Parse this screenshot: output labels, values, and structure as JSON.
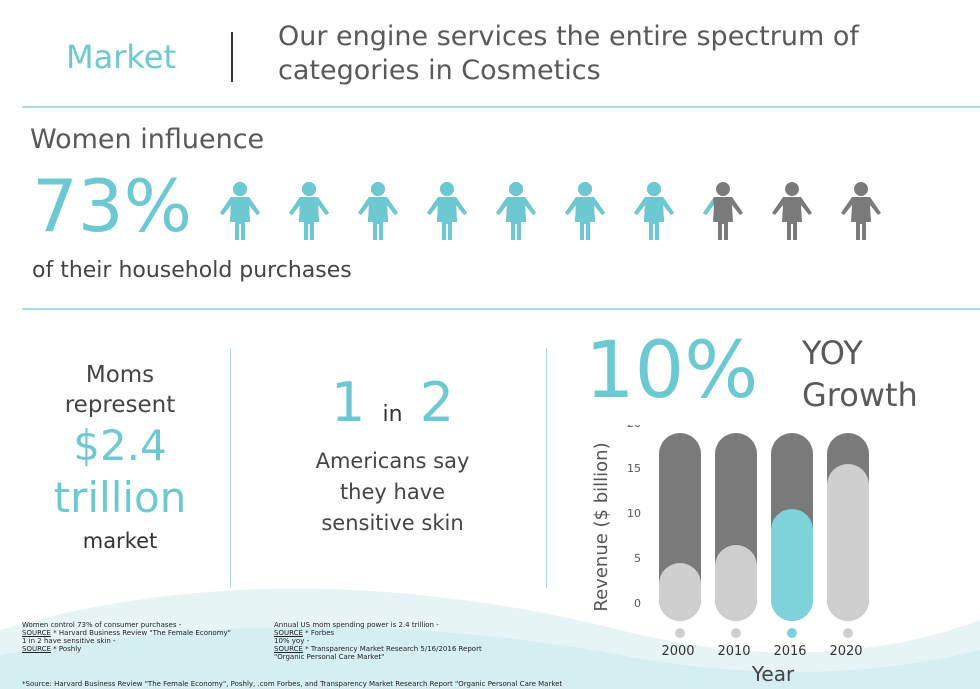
{
  "header": {
    "section": "Market",
    "tagline_line1": "Our engine services the entire spectrum of",
    "tagline_line2": "categories in Cosmetics"
  },
  "influence": {
    "heading": "Women influence",
    "percent": "73%",
    "caption": "of their household purchases",
    "figures_total": 10,
    "figures_filled": 7.3
  },
  "moms": {
    "line1": "Moms",
    "line2": "represent",
    "amount": "$2.4",
    "unit": "trillion",
    "line5": "market"
  },
  "americans": {
    "num1": "1",
    "in": "in",
    "num2": "2",
    "line1": "Americans say",
    "line2": "they have",
    "line3": "sensitive skin"
  },
  "growth": {
    "percent": "10%",
    "label1": "YOY",
    "label2": "Growth"
  },
  "sources": {
    "left1": "Women control 73% of consumer purchases -",
    "left2_key": "SOURCE",
    "left2": " * Harvard Business Review \"The Female Economy\"",
    "left3": "1 in 2 have sensitive skin -",
    "left4_key": "SOURCE",
    "left4": " * Poshly",
    "right1": "Annual US mom spending power is 2.4 trillion -",
    "right2_key": "SOURCE",
    "right2": " * Forbes",
    "right3": "10% yoy -",
    "right4_key": "SOURCE",
    "right4": " * Transparency Market Research 5/16/2016 Report",
    "right5": "\"Organic Personal Care Market\"",
    "footer": "*Source: Harvard Business Review \"The Female Economy\", Poshly, .com Forbes, and Transparency Market Research Report \"Organic Personal Care Market"
  },
  "colors": {
    "teal": "#6cc9d1",
    "track": "#7a7a7a",
    "fill": "#cfcfcf",
    "highlight": "#7ed3da",
    "text_gray": "#595959"
  },
  "chart_data": {
    "type": "bar",
    "categories": [
      "2000",
      "2010",
      "2016",
      "2020"
    ],
    "values": [
      6,
      8,
      12,
      17
    ],
    "highlight_index": 2,
    "xlabel": "Year",
    "ylabel": "Revenue ($ billion)",
    "ylim": [
      0,
      20
    ],
    "yticks": [
      "0",
      "5",
      "10",
      "15",
      "20"
    ],
    "grid": false,
    "legend": "none"
  }
}
